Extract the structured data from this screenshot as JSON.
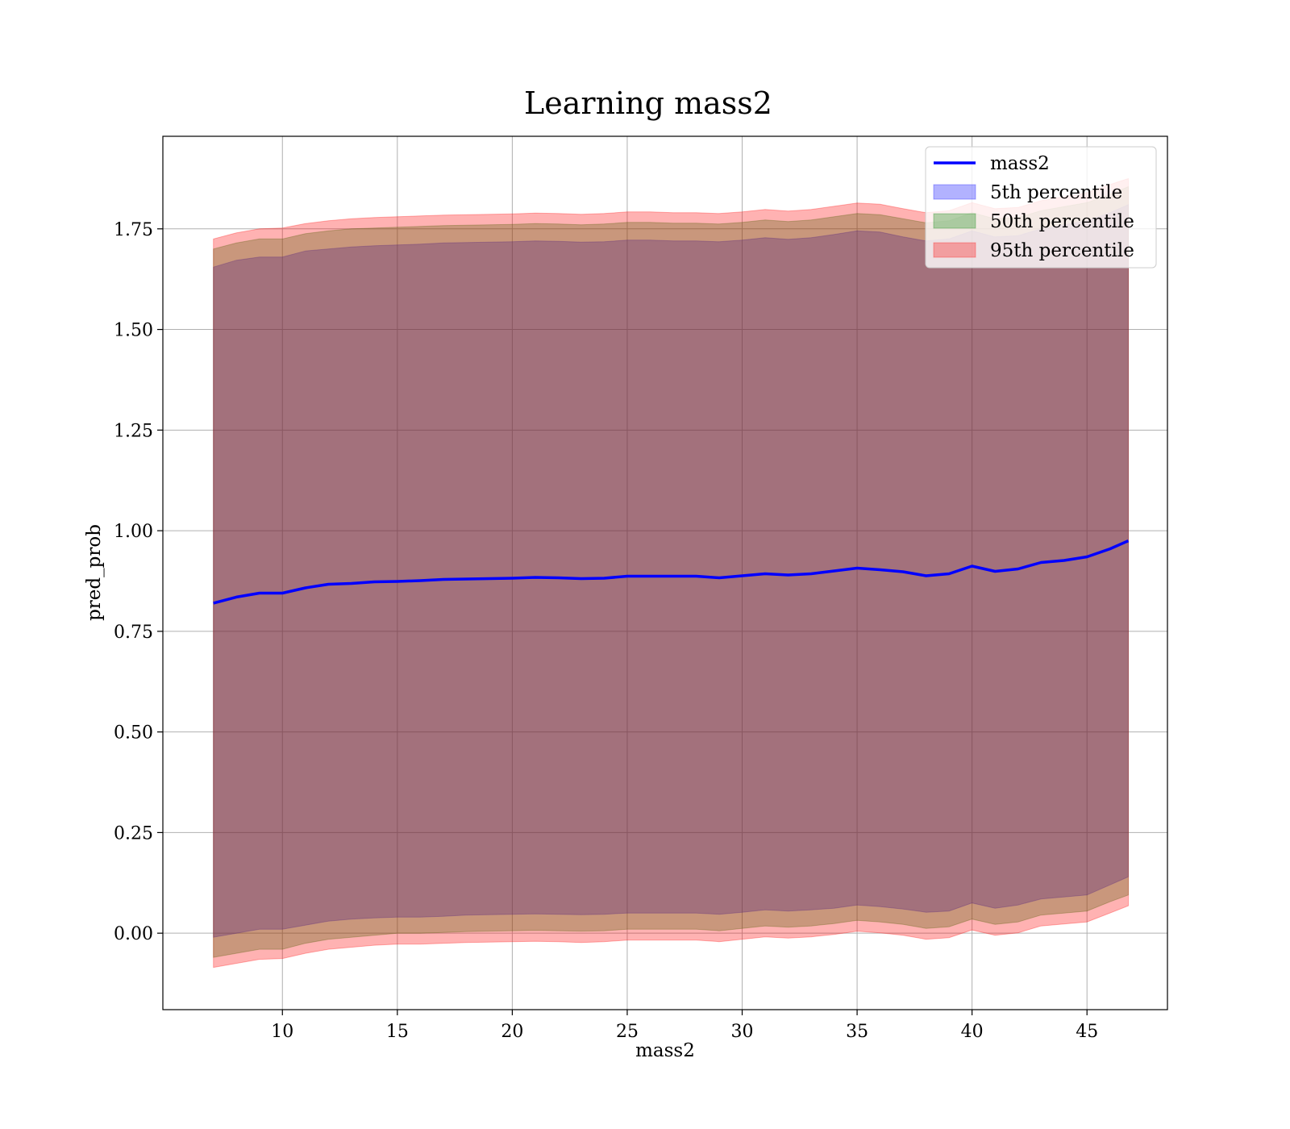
{
  "chart_data": {
    "type": "area",
    "title": "Learning mass2",
    "xlabel": "mass2",
    "ylabel": "pred_prob",
    "xlim": [
      4.8,
      48.5
    ],
    "ylim": [
      -0.19,
      1.98
    ],
    "xticks": [
      10,
      15,
      20,
      25,
      30,
      35,
      40,
      45
    ],
    "yticks": [
      0.0,
      0.25,
      0.5,
      0.75,
      1.0,
      1.25,
      1.5,
      1.75
    ],
    "xtick_labels": [
      "10",
      "15",
      "20",
      "25",
      "30",
      "35",
      "40",
      "45"
    ],
    "ytick_labels": [
      "0.00",
      "0.25",
      "0.50",
      "0.75",
      "1.00",
      "1.25",
      "1.50",
      "1.75"
    ],
    "grid": true,
    "legend_position": "top-right",
    "x": [
      7,
      8,
      9,
      10,
      11,
      12,
      13,
      14,
      15,
      16,
      17,
      18,
      19,
      20,
      21,
      22,
      23,
      24,
      25,
      26,
      27,
      28,
      29,
      30,
      31,
      32,
      33,
      34,
      35,
      36,
      37,
      38,
      39,
      40,
      41,
      42,
      43,
      44,
      45,
      46,
      46.8
    ],
    "series": [
      {
        "name": "mass2",
        "kind": "line",
        "color": "#0000ff",
        "values": [
          0.82,
          0.835,
          0.845,
          0.845,
          0.858,
          0.867,
          0.869,
          0.873,
          0.874,
          0.876,
          0.879,
          0.88,
          0.881,
          0.882,
          0.884,
          0.883,
          0.881,
          0.882,
          0.887,
          0.887,
          0.887,
          0.887,
          0.883,
          0.888,
          0.893,
          0.89,
          0.893,
          0.9,
          0.907,
          0.903,
          0.898,
          0.888,
          0.893,
          0.912,
          0.899,
          0.905,
          0.921,
          0.926,
          0.935,
          0.955,
          0.975
        ]
      },
      {
        "name": "5th percentile",
        "kind": "band",
        "color": "#0000ff",
        "lower": [
          -0.01,
          0.0,
          0.01,
          0.01,
          0.02,
          0.03,
          0.035,
          0.038,
          0.04,
          0.04,
          0.042,
          0.045,
          0.046,
          0.047,
          0.048,
          0.047,
          0.046,
          0.047,
          0.05,
          0.05,
          0.05,
          0.05,
          0.047,
          0.052,
          0.058,
          0.055,
          0.058,
          0.062,
          0.07,
          0.066,
          0.06,
          0.052,
          0.055,
          0.075,
          0.062,
          0.07,
          0.085,
          0.09,
          0.095,
          0.12,
          0.14
        ],
        "upper": [
          1.655,
          1.672,
          1.68,
          1.68,
          1.695,
          1.7,
          1.705,
          1.708,
          1.71,
          1.712,
          1.715,
          1.716,
          1.717,
          1.718,
          1.72,
          1.719,
          1.717,
          1.718,
          1.722,
          1.722,
          1.72,
          1.72,
          1.718,
          1.722,
          1.728,
          1.724,
          1.728,
          1.736,
          1.745,
          1.742,
          1.73,
          1.72,
          1.725,
          1.745,
          1.73,
          1.733,
          1.75,
          1.76,
          1.77,
          1.79,
          1.81
        ]
      },
      {
        "name": "50th percentile",
        "kind": "band",
        "color": "#008000",
        "lower": [
          -0.06,
          -0.05,
          -0.04,
          -0.04,
          -0.025,
          -0.015,
          -0.01,
          -0.005,
          0.0,
          0.0,
          0.002,
          0.004,
          0.005,
          0.006,
          0.007,
          0.006,
          0.005,
          0.006,
          0.01,
          0.01,
          0.01,
          0.01,
          0.006,
          0.012,
          0.018,
          0.015,
          0.018,
          0.024,
          0.032,
          0.028,
          0.022,
          0.012,
          0.016,
          0.035,
          0.022,
          0.028,
          0.045,
          0.05,
          0.055,
          0.078,
          0.095
        ],
        "upper": [
          1.7,
          1.715,
          1.725,
          1.725,
          1.738,
          1.745,
          1.75,
          1.752,
          1.754,
          1.756,
          1.758,
          1.759,
          1.76,
          1.761,
          1.763,
          1.762,
          1.76,
          1.762,
          1.766,
          1.766,
          1.764,
          1.764,
          1.762,
          1.766,
          1.772,
          1.768,
          1.772,
          1.78,
          1.788,
          1.785,
          1.775,
          1.765,
          1.77,
          1.79,
          1.775,
          1.778,
          1.795,
          1.805,
          1.815,
          1.835,
          1.855
        ]
      },
      {
        "name": "95th percentile",
        "kind": "band",
        "color": "#ff0000",
        "lower": [
          -0.085,
          -0.075,
          -0.065,
          -0.063,
          -0.05,
          -0.04,
          -0.035,
          -0.03,
          -0.027,
          -0.027,
          -0.025,
          -0.023,
          -0.022,
          -0.021,
          -0.02,
          -0.021,
          -0.023,
          -0.021,
          -0.017,
          -0.017,
          -0.017,
          -0.017,
          -0.021,
          -0.015,
          -0.009,
          -0.012,
          -0.009,
          -0.003,
          0.005,
          0.001,
          -0.005,
          -0.015,
          -0.011,
          0.008,
          -0.005,
          0.001,
          0.018,
          0.023,
          0.028,
          0.05,
          0.068
        ],
        "upper": [
          1.725,
          1.74,
          1.75,
          1.752,
          1.763,
          1.77,
          1.775,
          1.778,
          1.78,
          1.782,
          1.784,
          1.785,
          1.786,
          1.787,
          1.789,
          1.788,
          1.786,
          1.788,
          1.792,
          1.792,
          1.79,
          1.79,
          1.788,
          1.792,
          1.798,
          1.794,
          1.798,
          1.806,
          1.814,
          1.811,
          1.8,
          1.79,
          1.795,
          1.815,
          1.8,
          1.803,
          1.82,
          1.83,
          1.84,
          1.86,
          1.875
        ]
      }
    ]
  }
}
